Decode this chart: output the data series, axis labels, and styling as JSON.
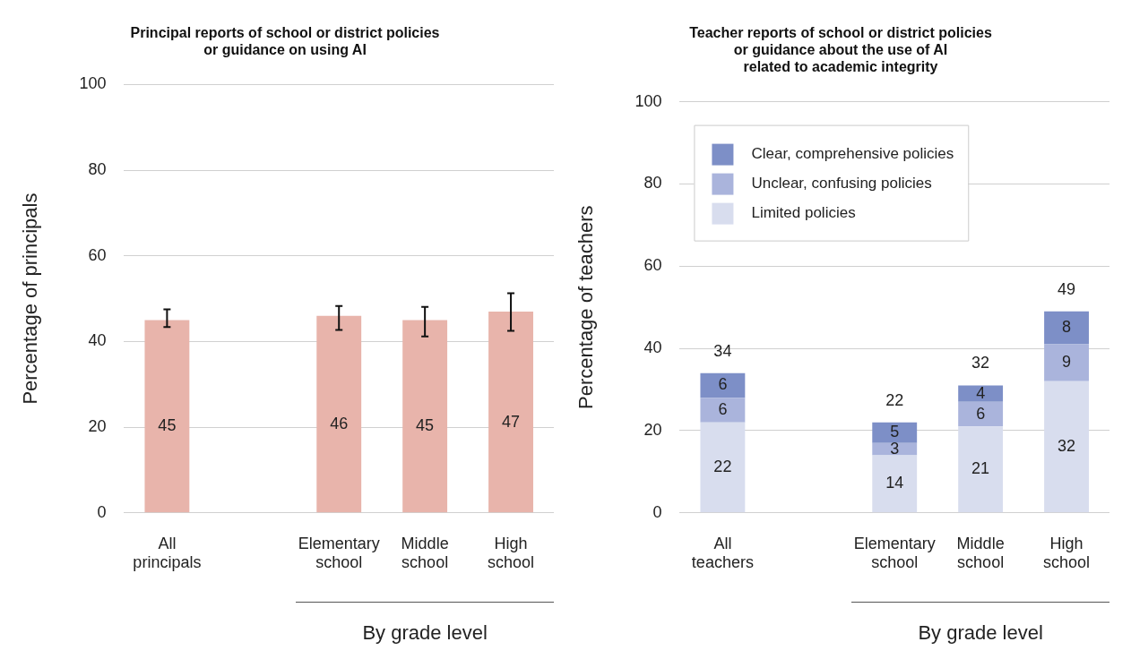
{
  "chart_data": [
    {
      "type": "bar",
      "title": "Principal reports of school or district policies\nor guidance on using AI",
      "ylabel": "Percentage of principals",
      "xlabel": "By grade level",
      "categories": [
        "All principals",
        null,
        "Elementary school",
        "Middle school",
        "High school"
      ],
      "series": [
        {
          "color": "#e8b4ab",
          "values": [
            45,
            null,
            46,
            45,
            47
          ],
          "errors": [
            [
              43.4,
              47.5
            ],
            null,
            [
              42.7,
              48.3
            ],
            [
              41.2,
              48.1
            ],
            [
              42.5,
              51.3
            ]
          ]
        }
      ],
      "ylim": [
        0,
        100
      ],
      "yticks": [
        0,
        20,
        40,
        60,
        80,
        100
      ],
      "grid": "y",
      "data_labels": true
    },
    {
      "type": "bar",
      "title": "Teacher reports of school or district policies\nor guidance about the use of AI\nrelated to academic integrity",
      "ylabel": "Percentage of teachers",
      "xlabel": "By grade level",
      "categories": [
        "All teachers",
        null,
        "Elementary school",
        "Middle school",
        "High school"
      ],
      "stacked": true,
      "series": [
        {
          "name": "Limited policies",
          "color": "#d8ddee",
          "values": [
            22,
            null,
            14,
            21,
            32
          ]
        },
        {
          "name": "Unclear, confusing policies",
          "color": "#aab4dc",
          "values": [
            6,
            null,
            3,
            6,
            9
          ]
        },
        {
          "name": "Clear, comprehensive policies",
          "color": "#7d8fc7",
          "values": [
            6,
            null,
            5,
            4,
            8
          ]
        }
      ],
      "totals": [
        "34",
        null,
        "22",
        "32",
        "49"
      ],
      "ylim": [
        0,
        100
      ],
      "yticks": [
        0,
        20,
        40,
        60,
        80,
        100
      ],
      "grid": "y",
      "data_labels": true,
      "legend": "top left"
    }
  ]
}
